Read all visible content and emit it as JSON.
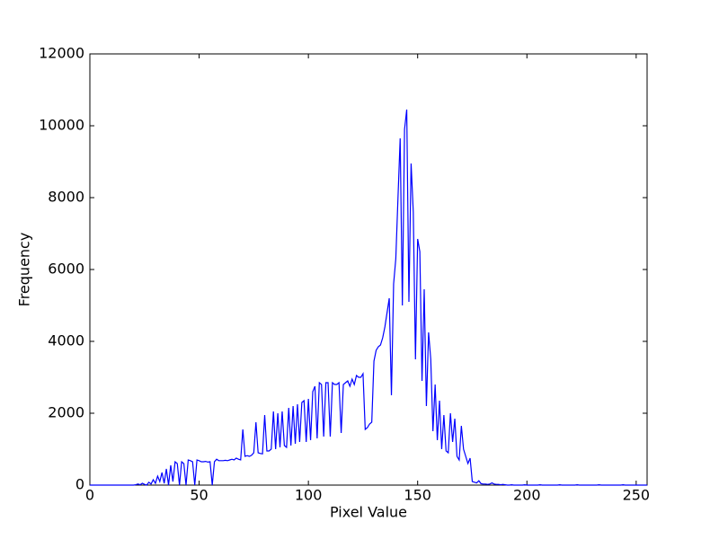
{
  "chart_data": {
    "type": "line",
    "x_label": "Pixel Value",
    "y_label": "Frequency",
    "xlim": [
      0,
      255
    ],
    "ylim": [
      0,
      12000
    ],
    "xticks": [
      0,
      50,
      100,
      150,
      200,
      250
    ],
    "yticks": [
      0,
      2000,
      4000,
      6000,
      8000,
      10000,
      12000
    ],
    "grid": false,
    "x": [
      0,
      1,
      2,
      3,
      4,
      5,
      6,
      7,
      8,
      9,
      10,
      11,
      12,
      13,
      14,
      15,
      16,
      17,
      18,
      19,
      20,
      21,
      22,
      23,
      24,
      25,
      26,
      27,
      28,
      29,
      30,
      31,
      32,
      33,
      34,
      35,
      36,
      37,
      38,
      39,
      40,
      41,
      42,
      43,
      44,
      45,
      46,
      47,
      48,
      49,
      50,
      51,
      52,
      53,
      54,
      55,
      56,
      57,
      58,
      59,
      60,
      61,
      62,
      63,
      64,
      65,
      66,
      67,
      68,
      69,
      70,
      71,
      72,
      73,
      74,
      75,
      76,
      77,
      78,
      79,
      80,
      81,
      82,
      83,
      84,
      85,
      86,
      87,
      88,
      89,
      90,
      91,
      92,
      93,
      94,
      95,
      96,
      97,
      98,
      99,
      100,
      101,
      102,
      103,
      104,
      105,
      106,
      107,
      108,
      109,
      110,
      111,
      112,
      113,
      114,
      115,
      116,
      117,
      118,
      119,
      120,
      121,
      122,
      123,
      124,
      125,
      126,
      127,
      128,
      129,
      130,
      131,
      132,
      133,
      134,
      135,
      136,
      137,
      138,
      139,
      140,
      141,
      142,
      143,
      144,
      145,
      146,
      147,
      148,
      149,
      150,
      151,
      152,
      153,
      154,
      155,
      156,
      157,
      158,
      159,
      160,
      161,
      162,
      163,
      164,
      165,
      166,
      167,
      168,
      169,
      170,
      171,
      172,
      173,
      174,
      175,
      176,
      177,
      178,
      179,
      180,
      181,
      182,
      183,
      184,
      185,
      186,
      187,
      188,
      189,
      190,
      191,
      192,
      193,
      194,
      195,
      196,
      197,
      198,
      199,
      200,
      201,
      202,
      203,
      204,
      205,
      206,
      207,
      208,
      209,
      210,
      211,
      212,
      213,
      214,
      215,
      216,
      217,
      218,
      219,
      220,
      221,
      222,
      223,
      224,
      225,
      226,
      227,
      228,
      229,
      230,
      231,
      232,
      233,
      234,
      235,
      236,
      237,
      238,
      239,
      240,
      241,
      242,
      243,
      244,
      245,
      246,
      247,
      248,
      249,
      250,
      251,
      252,
      253,
      254,
      255
    ],
    "series": [
      {
        "color": "#0000ff",
        "values": [
          0,
          0,
          0,
          0,
          0,
          0,
          0,
          0,
          0,
          0,
          0,
          0,
          0,
          0,
          0,
          0,
          0,
          0,
          0,
          0,
          0,
          10,
          30,
          10,
          50,
          20,
          0,
          80,
          30,
          150,
          50,
          250,
          100,
          350,
          50,
          450,
          0,
          550,
          100,
          650,
          600,
          0,
          650,
          600,
          0,
          700,
          680,
          650,
          0,
          700,
          680,
          650,
          650,
          660,
          640,
          650,
          0,
          650,
          720,
          680,
          680,
          680,
          690,
          680,
          700,
          720,
          700,
          750,
          720,
          700,
          1550,
          800,
          820,
          800,
          830,
          900,
          1750,
          900,
          880,
          870,
          1950,
          950,
          950,
          1000,
          2050,
          1000,
          2000,
          1050,
          2050,
          1100,
          1050,
          2150,
          1100,
          2200,
          1150,
          2250,
          1200,
          2300,
          2350,
          1200,
          2400,
          1250,
          2600,
          2750,
          1300,
          2850,
          2800,
          1350,
          2850,
          2850,
          1350,
          2850,
          2800,
          2800,
          2850,
          1450,
          2800,
          2850,
          2900,
          2750,
          2950,
          2800,
          3050,
          3000,
          3000,
          3100,
          1550,
          1600,
          1700,
          1750,
          3450,
          3750,
          3850,
          3900,
          4100,
          4400,
          4800,
          5200,
          2500,
          5600,
          6300,
          8000,
          9650,
          5000,
          9900,
          10450,
          5100,
          8950,
          7600,
          3500,
          6850,
          6500,
          2900,
          5450,
          2200,
          4250,
          3500,
          1500,
          2800,
          1250,
          2350,
          1000,
          1950,
          950,
          900,
          2000,
          1200,
          1850,
          800,
          700,
          1650,
          1000,
          800,
          600,
          750,
          100,
          80,
          60,
          120,
          40,
          30,
          30,
          20,
          30,
          60,
          30,
          20,
          20,
          10,
          20,
          10,
          0,
          0,
          10,
          0,
          0,
          0,
          0,
          0,
          10,
          0,
          0,
          0,
          0,
          0,
          0,
          10,
          0,
          0,
          0,
          0,
          0,
          0,
          0,
          0,
          10,
          0,
          0,
          0,
          0,
          0,
          0,
          0,
          10,
          0,
          0,
          0,
          0,
          0,
          0,
          0,
          0,
          0,
          10,
          0,
          0,
          0,
          0,
          0,
          0,
          0,
          0,
          0,
          0,
          10,
          0,
          0,
          0,
          0,
          0,
          0,
          0,
          0,
          0,
          0,
          0
        ]
      }
    ]
  }
}
